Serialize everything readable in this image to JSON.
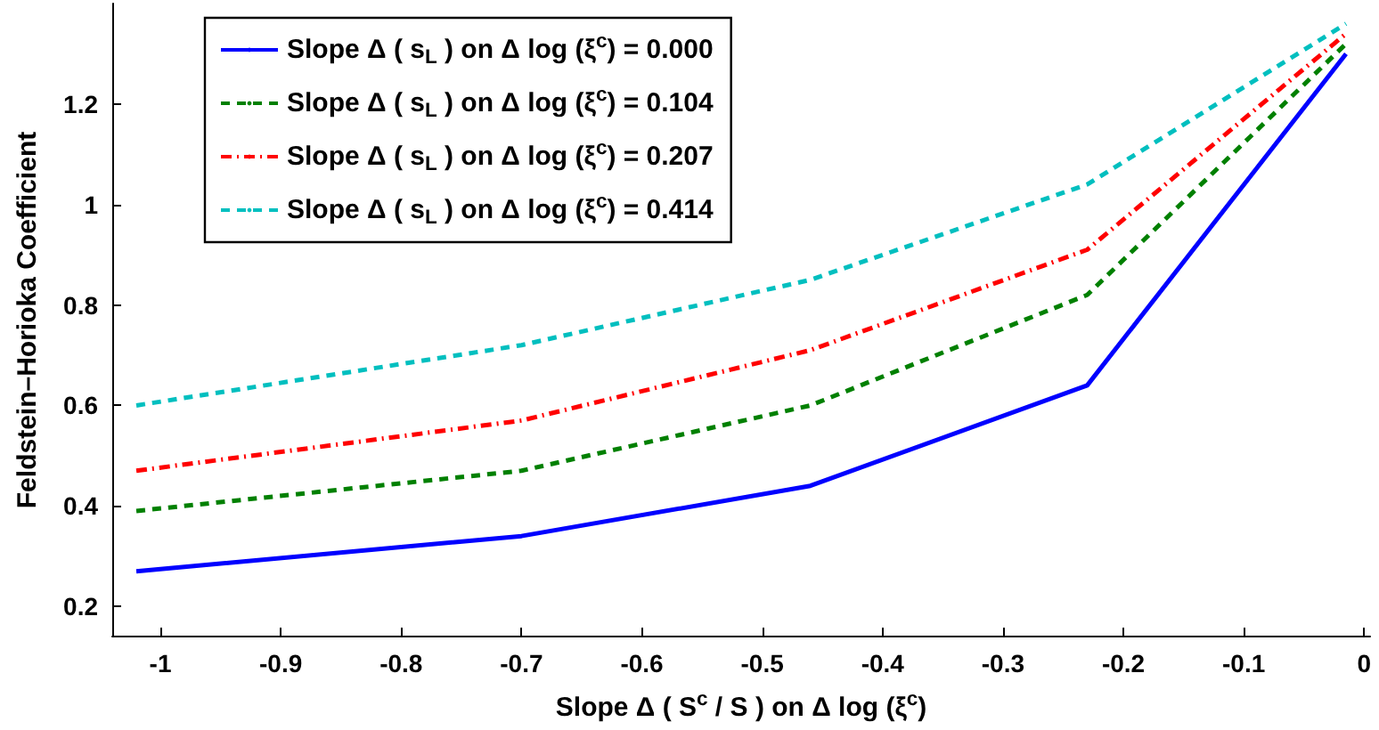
{
  "chart_data": {
    "type": "line",
    "xlabel": "Slope Δ ( S$^{c}$ / S ) on Δ log (ξ$^{c}$)",
    "ylabel": "Feldstein–Horioka Coefficient",
    "x": [
      -1.02,
      -0.7,
      -0.46,
      -0.23,
      -0.015
    ],
    "series": [
      {
        "name": "Slope Δ ( s$_{L}$ ) on Δ log (ξ$^{c}$) = 0.000",
        "color": "#0000ff",
        "line_style": "solid",
        "values": [
          0.27,
          0.34,
          0.44,
          0.64,
          1.3
        ]
      },
      {
        "name": "Slope Δ ( s$_{L}$ ) on Δ log (ξ$^{c}$) = 0.104",
        "color": "#008000",
        "line_style": "dashed",
        "values": [
          0.39,
          0.47,
          0.6,
          0.82,
          1.32
        ]
      },
      {
        "name": "Slope Δ ( s$_{L}$ ) on Δ log (ξ$^{c}$) = 0.207",
        "color": "#ff0000",
        "line_style": "dashdot",
        "values": [
          0.47,
          0.57,
          0.71,
          0.91,
          1.34
        ]
      },
      {
        "name": "Slope Δ ( s$_{L}$ ) on Δ log (ξ$^{c}$) = 0.414",
        "color": "#00bfbf",
        "line_style": "dashed",
        "values": [
          0.6,
          0.72,
          0.85,
          1.04,
          1.36
        ]
      }
    ],
    "xlim": [
      -1.04,
      0.005
    ],
    "xticks": [
      -1,
      -0.9,
      -0.8,
      -0.7,
      -0.6,
      -0.5,
      -0.4,
      -0.3,
      -0.2,
      -0.1,
      0
    ],
    "ylim": [
      0.14,
      1.4
    ],
    "yticks": [
      0.2,
      0.4,
      0.6,
      0.8,
      1,
      1.2
    ],
    "grid": false,
    "legend": "top left",
    "marker": "none"
  }
}
